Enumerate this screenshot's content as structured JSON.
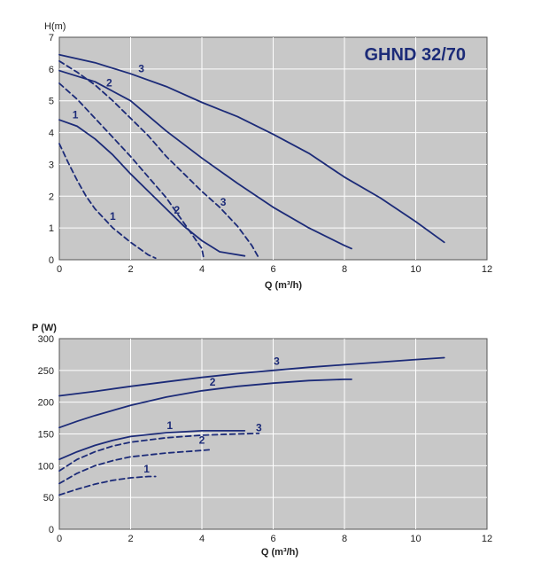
{
  "colors": {
    "plot_bg": "#c8c8c8",
    "grid": "#ffffff",
    "curve": "#1c2b78",
    "frame": "#555555"
  },
  "chart_data": [
    {
      "type": "line",
      "title": "GHND 32/70",
      "xlabel": "Q (m³/h)",
      "ylabel": "H(m)",
      "xlim": [
        0,
        12
      ],
      "ylim": [
        0,
        7
      ],
      "xticks": [
        "0",
        "2",
        "4",
        "6",
        "8",
        "10",
        "12"
      ],
      "yticks": [
        "0",
        "1",
        "2",
        "3",
        "4",
        "5",
        "6",
        "7"
      ],
      "grid": true,
      "series": [
        {
          "name": "3",
          "style": "solid",
          "label_at": [
            2.3,
            5.9
          ],
          "points": [
            [
              0,
              6.45
            ],
            [
              1,
              6.2
            ],
            [
              2,
              5.85
            ],
            [
              3,
              5.45
            ],
            [
              4,
              4.95
            ],
            [
              5,
              4.5
            ],
            [
              6,
              3.95
            ],
            [
              7,
              3.35
            ],
            [
              8,
              2.6
            ],
            [
              9,
              1.95
            ],
            [
              10,
              1.2
            ],
            [
              10.8,
              0.55
            ]
          ]
        },
        {
          "name": "2",
          "style": "solid",
          "label_at": [
            1.4,
            5.45
          ],
          "points": [
            [
              0,
              5.95
            ],
            [
              1,
              5.6
            ],
            [
              2,
              5.0
            ],
            [
              3,
              4.05
            ],
            [
              4,
              3.2
            ],
            [
              5,
              2.4
            ],
            [
              6,
              1.65
            ],
            [
              7,
              1.0
            ],
            [
              8,
              0.45
            ],
            [
              8.2,
              0.35
            ]
          ]
        },
        {
          "name": "1",
          "style": "solid",
          "label_at": [
            0.45,
            4.45
          ],
          "points": [
            [
              0,
              4.4
            ],
            [
              0.5,
              4.2
            ],
            [
              1,
              3.8
            ],
            [
              1.5,
              3.3
            ],
            [
              2,
              2.7
            ],
            [
              2.5,
              2.15
            ],
            [
              3,
              1.6
            ],
            [
              3.5,
              1.05
            ],
            [
              4,
              0.6
            ],
            [
              4.5,
              0.25
            ],
            [
              5.2,
              0.12
            ]
          ]
        },
        {
          "name": "3",
          "style": "dashed",
          "label_at": [
            4.6,
            1.7
          ],
          "points": [
            [
              0,
              6.25
            ],
            [
              0.5,
              5.9
            ],
            [
              1,
              5.5
            ],
            [
              1.5,
              5.0
            ],
            [
              2,
              4.45
            ],
            [
              2.5,
              3.9
            ],
            [
              3,
              3.25
            ],
            [
              3.5,
              2.7
            ],
            [
              4,
              2.15
            ],
            [
              4.5,
              1.65
            ],
            [
              5,
              1.05
            ],
            [
              5.4,
              0.45
            ],
            [
              5.6,
              0.05
            ]
          ]
        },
        {
          "name": "2",
          "style": "dashed",
          "label_at": [
            3.3,
            1.45
          ],
          "points": [
            [
              0,
              5.55
            ],
            [
              0.5,
              5.05
            ],
            [
              1,
              4.45
            ],
            [
              1.5,
              3.85
            ],
            [
              2,
              3.25
            ],
            [
              2.5,
              2.6
            ],
            [
              3,
              1.95
            ],
            [
              3.5,
              1.15
            ],
            [
              4,
              0.35
            ],
            [
              4.05,
              0.05
            ]
          ]
        },
        {
          "name": "1",
          "style": "dashed",
          "label_at": [
            1.5,
            1.25
          ],
          "points": [
            [
              0,
              3.65
            ],
            [
              0.25,
              3.05
            ],
            [
              0.5,
              2.5
            ],
            [
              0.75,
              2.0
            ],
            [
              1,
              1.6
            ],
            [
              1.5,
              1.0
            ],
            [
              2,
              0.55
            ],
            [
              2.5,
              0.15
            ],
            [
              2.7,
              0.05
            ]
          ]
        }
      ]
    },
    {
      "type": "line",
      "title": "",
      "xlabel": "Q (m³/h)",
      "ylabel": "P (W)",
      "xlim": [
        0,
        12
      ],
      "ylim": [
        0,
        300
      ],
      "xticks": [
        "0",
        "2",
        "4",
        "6",
        "8",
        "10",
        "12"
      ],
      "yticks": [
        "0",
        "50",
        "100",
        "150",
        "200",
        "250",
        "300"
      ],
      "grid": true,
      "series": [
        {
          "name": "3",
          "style": "solid",
          "label_at": [
            6.1,
            259
          ],
          "points": [
            [
              0,
              210
            ],
            [
              1,
              217
            ],
            [
              2,
              225
            ],
            [
              3,
              232
            ],
            [
              4,
              239
            ],
            [
              5,
              245
            ],
            [
              6,
              250
            ],
            [
              7,
              255
            ],
            [
              8,
              259
            ],
            [
              9,
              263
            ],
            [
              10,
              267
            ],
            [
              10.8,
              270
            ]
          ]
        },
        {
          "name": "2",
          "style": "solid",
          "label_at": [
            4.3,
            226
          ],
          "points": [
            [
              0,
              160
            ],
            [
              0.5,
              170
            ],
            [
              1,
              179
            ],
            [
              2,
              195
            ],
            [
              3,
              208
            ],
            [
              4,
              218
            ],
            [
              5,
              225
            ],
            [
              6,
              230
            ],
            [
              7,
              234
            ],
            [
              8,
              236
            ],
            [
              8.2,
              236
            ]
          ]
        },
        {
          "name": "1",
          "style": "solid",
          "label_at": [
            3.1,
            158
          ],
          "points": [
            [
              0,
              110
            ],
            [
              0.5,
              122
            ],
            [
              1,
              132
            ],
            [
              1.5,
              140
            ],
            [
              2,
              146
            ],
            [
              3,
              152
            ],
            [
              4,
              155
            ],
            [
              5,
              155
            ],
            [
              5.2,
              155
            ]
          ]
        },
        {
          "name": "3",
          "style": "dashed",
          "label_at": [
            5.6,
            154
          ],
          "points": [
            [
              0,
              92
            ],
            [
              0.5,
              110
            ],
            [
              1,
              122
            ],
            [
              1.5,
              131
            ],
            [
              2,
              137
            ],
            [
              3,
              144
            ],
            [
              4,
              148
            ],
            [
              5,
              150
            ],
            [
              5.6,
              151
            ]
          ]
        },
        {
          "name": "2",
          "style": "dashed",
          "label_at": [
            4.0,
            135
          ],
          "points": [
            [
              0,
              72
            ],
            [
              0.5,
              88
            ],
            [
              1,
              100
            ],
            [
              1.5,
              108
            ],
            [
              2,
              114
            ],
            [
              3,
              120
            ],
            [
              4,
              124
            ],
            [
              4.2,
              125
            ]
          ]
        },
        {
          "name": "1",
          "style": "dashed",
          "label_at": [
            2.45,
            89
          ],
          "points": [
            [
              0,
              54
            ],
            [
              0.5,
              63
            ],
            [
              1,
              71
            ],
            [
              1.5,
              77
            ],
            [
              2,
              81
            ],
            [
              2.5,
              83
            ],
            [
              2.7,
              83
            ]
          ]
        }
      ]
    }
  ]
}
